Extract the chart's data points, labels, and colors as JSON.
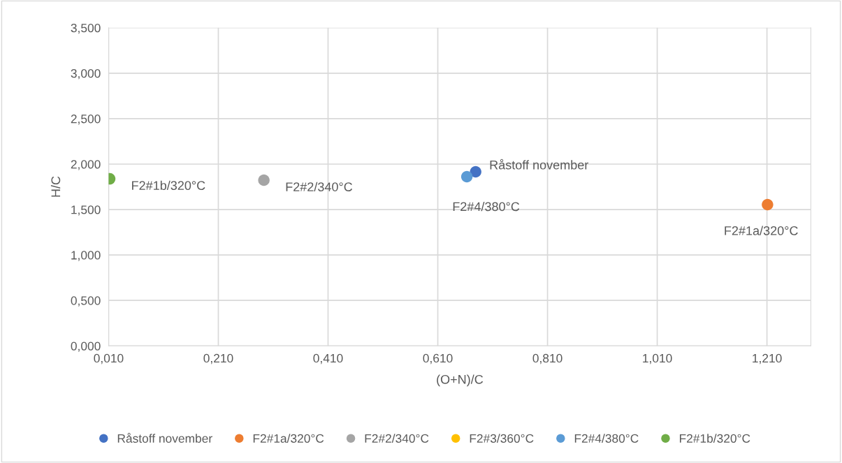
{
  "chart_data": {
    "type": "scatter",
    "xlabel": "(O+N)/C",
    "ylabel": "H/C",
    "series": [
      {
        "name": "Råstoff november",
        "color": "#4472c4",
        "x": [
          0.679
        ],
        "values": [
          1.915
        ]
      },
      {
        "name": "F2#1a/320°C",
        "color": "#ed7d31",
        "x": [
          1.211
        ],
        "values": [
          1.554
        ]
      },
      {
        "name": "F2#2/340°C",
        "color": "#a5a5a5",
        "x": [
          0.293
        ],
        "values": [
          1.823
        ]
      },
      {
        "name": "F2#3/360°C",
        "color": "#ffc000",
        "x": [
          null
        ],
        "values": [
          null
        ]
      },
      {
        "name": "F2#4/380°C",
        "color": "#5b9bd5",
        "x": [
          0.663
        ],
        "values": [
          1.862
        ]
      },
      {
        "name": "F2#1b/320°C",
        "color": "#70ad47",
        "x": [
          0.012
        ],
        "values": [
          1.838
        ]
      }
    ],
    "annotations": [
      {
        "text": "Råstoff november",
        "x": 0.679,
        "y": 1.915
      },
      {
        "text": "F2#1a/320°C",
        "x": 1.211,
        "y": 1.554
      },
      {
        "text": "F2#2/340°C",
        "x": 0.293,
        "y": 1.823
      },
      {
        "text": "F2#4/380°C",
        "x": 0.663,
        "y": 1.862
      },
      {
        "text": "F2#1b/320°C",
        "x": 0.012,
        "y": 1.838
      }
    ],
    "xlim": [
      0.01,
      1.29
    ],
    "xticks": [
      {
        "value": 0.01,
        "label": "0,010"
      },
      {
        "value": 0.21,
        "label": "0,210"
      },
      {
        "value": 0.41,
        "label": "0,410"
      },
      {
        "value": 0.61,
        "label": "0,610"
      },
      {
        "value": 0.81,
        "label": "0,810"
      },
      {
        "value": 1.01,
        "label": "1,010"
      },
      {
        "value": 1.21,
        "label": "1,210"
      }
    ],
    "ylim": [
      0,
      3.5
    ],
    "yticks": [
      {
        "value": 0,
        "label": "0,000"
      },
      {
        "value": 0.5,
        "label": "0,500"
      },
      {
        "value": 1,
        "label": "1,000"
      },
      {
        "value": 1.5,
        "label": "1,500"
      },
      {
        "value": 2,
        "label": "2,000"
      },
      {
        "value": 2.5,
        "label": "2,500"
      },
      {
        "value": 3,
        "label": "3,000"
      },
      {
        "value": 3.5,
        "label": "3,500"
      }
    ],
    "grid": true,
    "legend": "bottom",
    "marker": "circle"
  }
}
